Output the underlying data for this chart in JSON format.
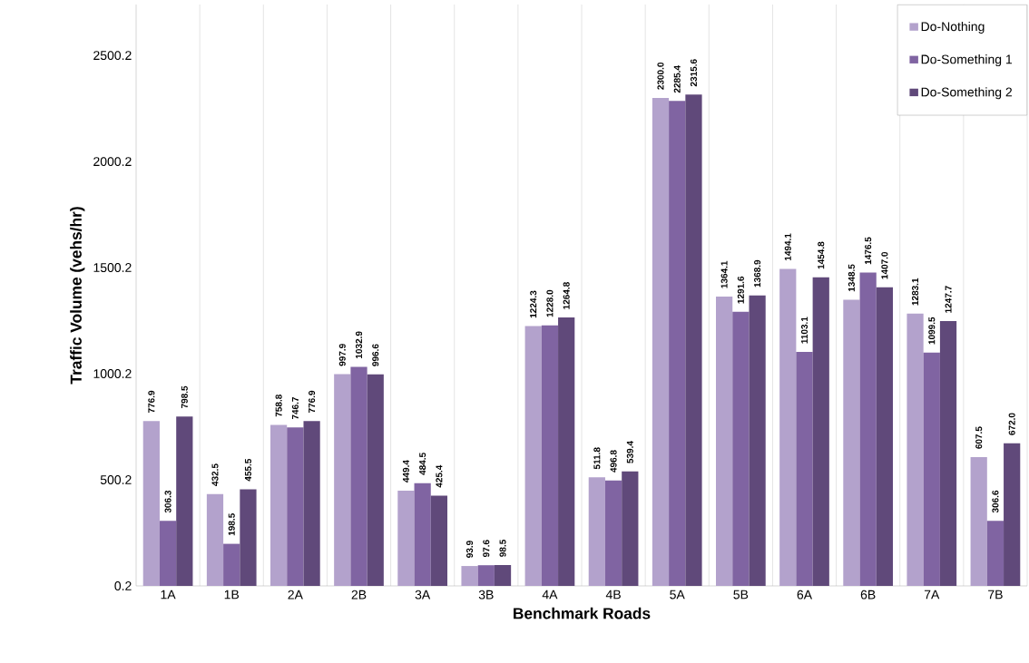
{
  "chart_data": {
    "type": "bar",
    "xlabel": "Benchmark Roads",
    "ylabel": "Traffic Volume (vehs/hr)",
    "categories": [
      "1A",
      "1B",
      "2A",
      "2B",
      "3A",
      "3B",
      "4A",
      "4B",
      "5A",
      "5B",
      "6A",
      "6B",
      "7A",
      "7B"
    ],
    "series": [
      {
        "name": "Do-Nothing",
        "color": "#b3a2cc",
        "values": [
          776.9,
          432.5,
          758.8,
          997.9,
          449.4,
          93.9,
          1224.3,
          511.8,
          2300.0,
          1364.1,
          1494.1,
          1348.5,
          1283.1,
          607.5
        ],
        "value_labels": [
          "776.9",
          "432.5",
          "758.8",
          "997.9",
          "449.4",
          "93.9",
          "1224.3",
          "511.8",
          "2300.0",
          "1364.1",
          "1494.1",
          "1348.5",
          "1283.1",
          "607.5"
        ]
      },
      {
        "name": "Do-Something 1",
        "color": "#8064a2",
        "values": [
          306.3,
          198.5,
          746.7,
          1032.9,
          484.5,
          97.6,
          1228.0,
          496.8,
          2285.4,
          1291.6,
          1103.1,
          1476.5,
          1099.5,
          306.6
        ],
        "value_labels": [
          "306.3",
          "198.5",
          "746.7",
          "1032.9",
          "484.5",
          "97.6",
          "1228.0",
          "496.8",
          "2285.4",
          "1291.6",
          "1103.1",
          "1476.5",
          "1099.5",
          "306.6"
        ]
      },
      {
        "name": "Do-Something 2",
        "color": "#60497a",
        "values": [
          798.5,
          455.5,
          776.9,
          996.6,
          425.4,
          98.5,
          1264.8,
          539.4,
          2315.6,
          1368.9,
          1454.8,
          1407.0,
          1247.7,
          672.0
        ],
        "value_labels": [
          "798.5",
          "455.5",
          "776.9",
          "996.6",
          "425.4",
          "98.5",
          "1264.8",
          "539.4",
          "2315.6",
          "1368.9",
          "1454.8",
          "1407.0",
          "1247.7",
          "672.0"
        ]
      }
    ],
    "ylim": [
      0.2,
      2740
    ],
    "yticks": [
      0.2,
      500.2,
      1000.2,
      1500.2,
      2000.2,
      2500.2
    ],
    "grid": "x",
    "legend": "top right"
  }
}
